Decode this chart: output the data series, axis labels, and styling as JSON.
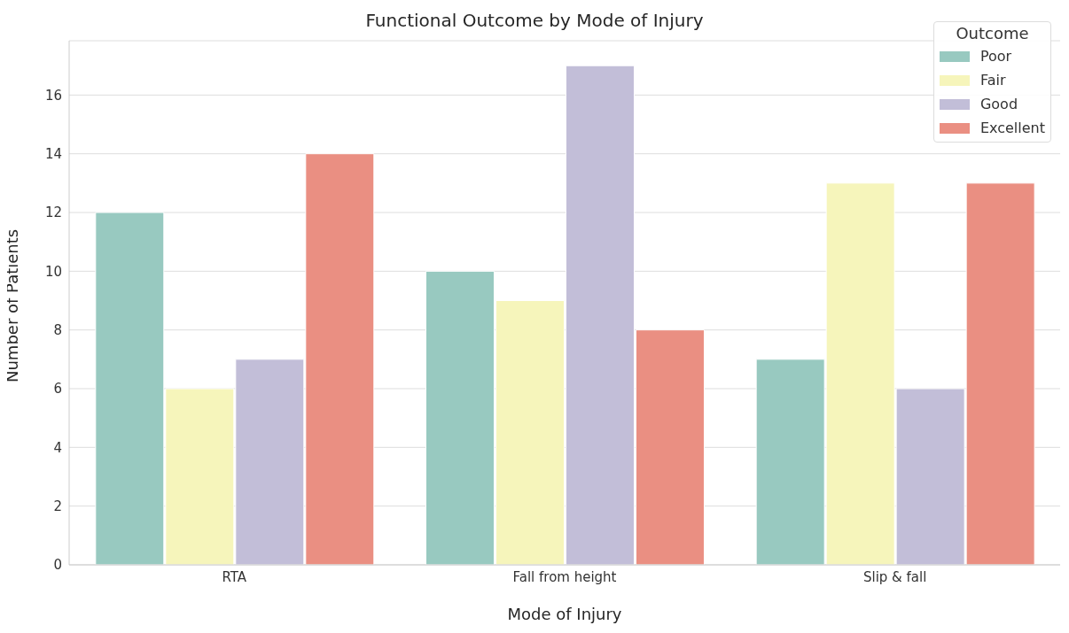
{
  "chart_data": {
    "type": "bar",
    "title": "Functional Outcome by Mode of Injury",
    "xlabel": "Mode of Injury",
    "ylabel": "Number of Patients",
    "legend_title": "Outcome",
    "categories": [
      "RTA",
      "Fall from height",
      "Slip & fall"
    ],
    "series": [
      {
        "name": "Poor",
        "color": "#98c9c0",
        "values": [
          12,
          10,
          7
        ]
      },
      {
        "name": "Fair",
        "color": "#f6f5bb",
        "values": [
          6,
          9,
          13
        ]
      },
      {
        "name": "Good",
        "color": "#c2bed8",
        "values": [
          7,
          17,
          6
        ]
      },
      {
        "name": "Excellent",
        "color": "#ea8f82",
        "values": [
          14,
          8,
          13
        ]
      }
    ],
    "ylim": [
      0,
      17.85
    ],
    "yticks": [
      0,
      2,
      4,
      6,
      8,
      10,
      12,
      14,
      16
    ],
    "grid": "y",
    "legend": "top right"
  }
}
